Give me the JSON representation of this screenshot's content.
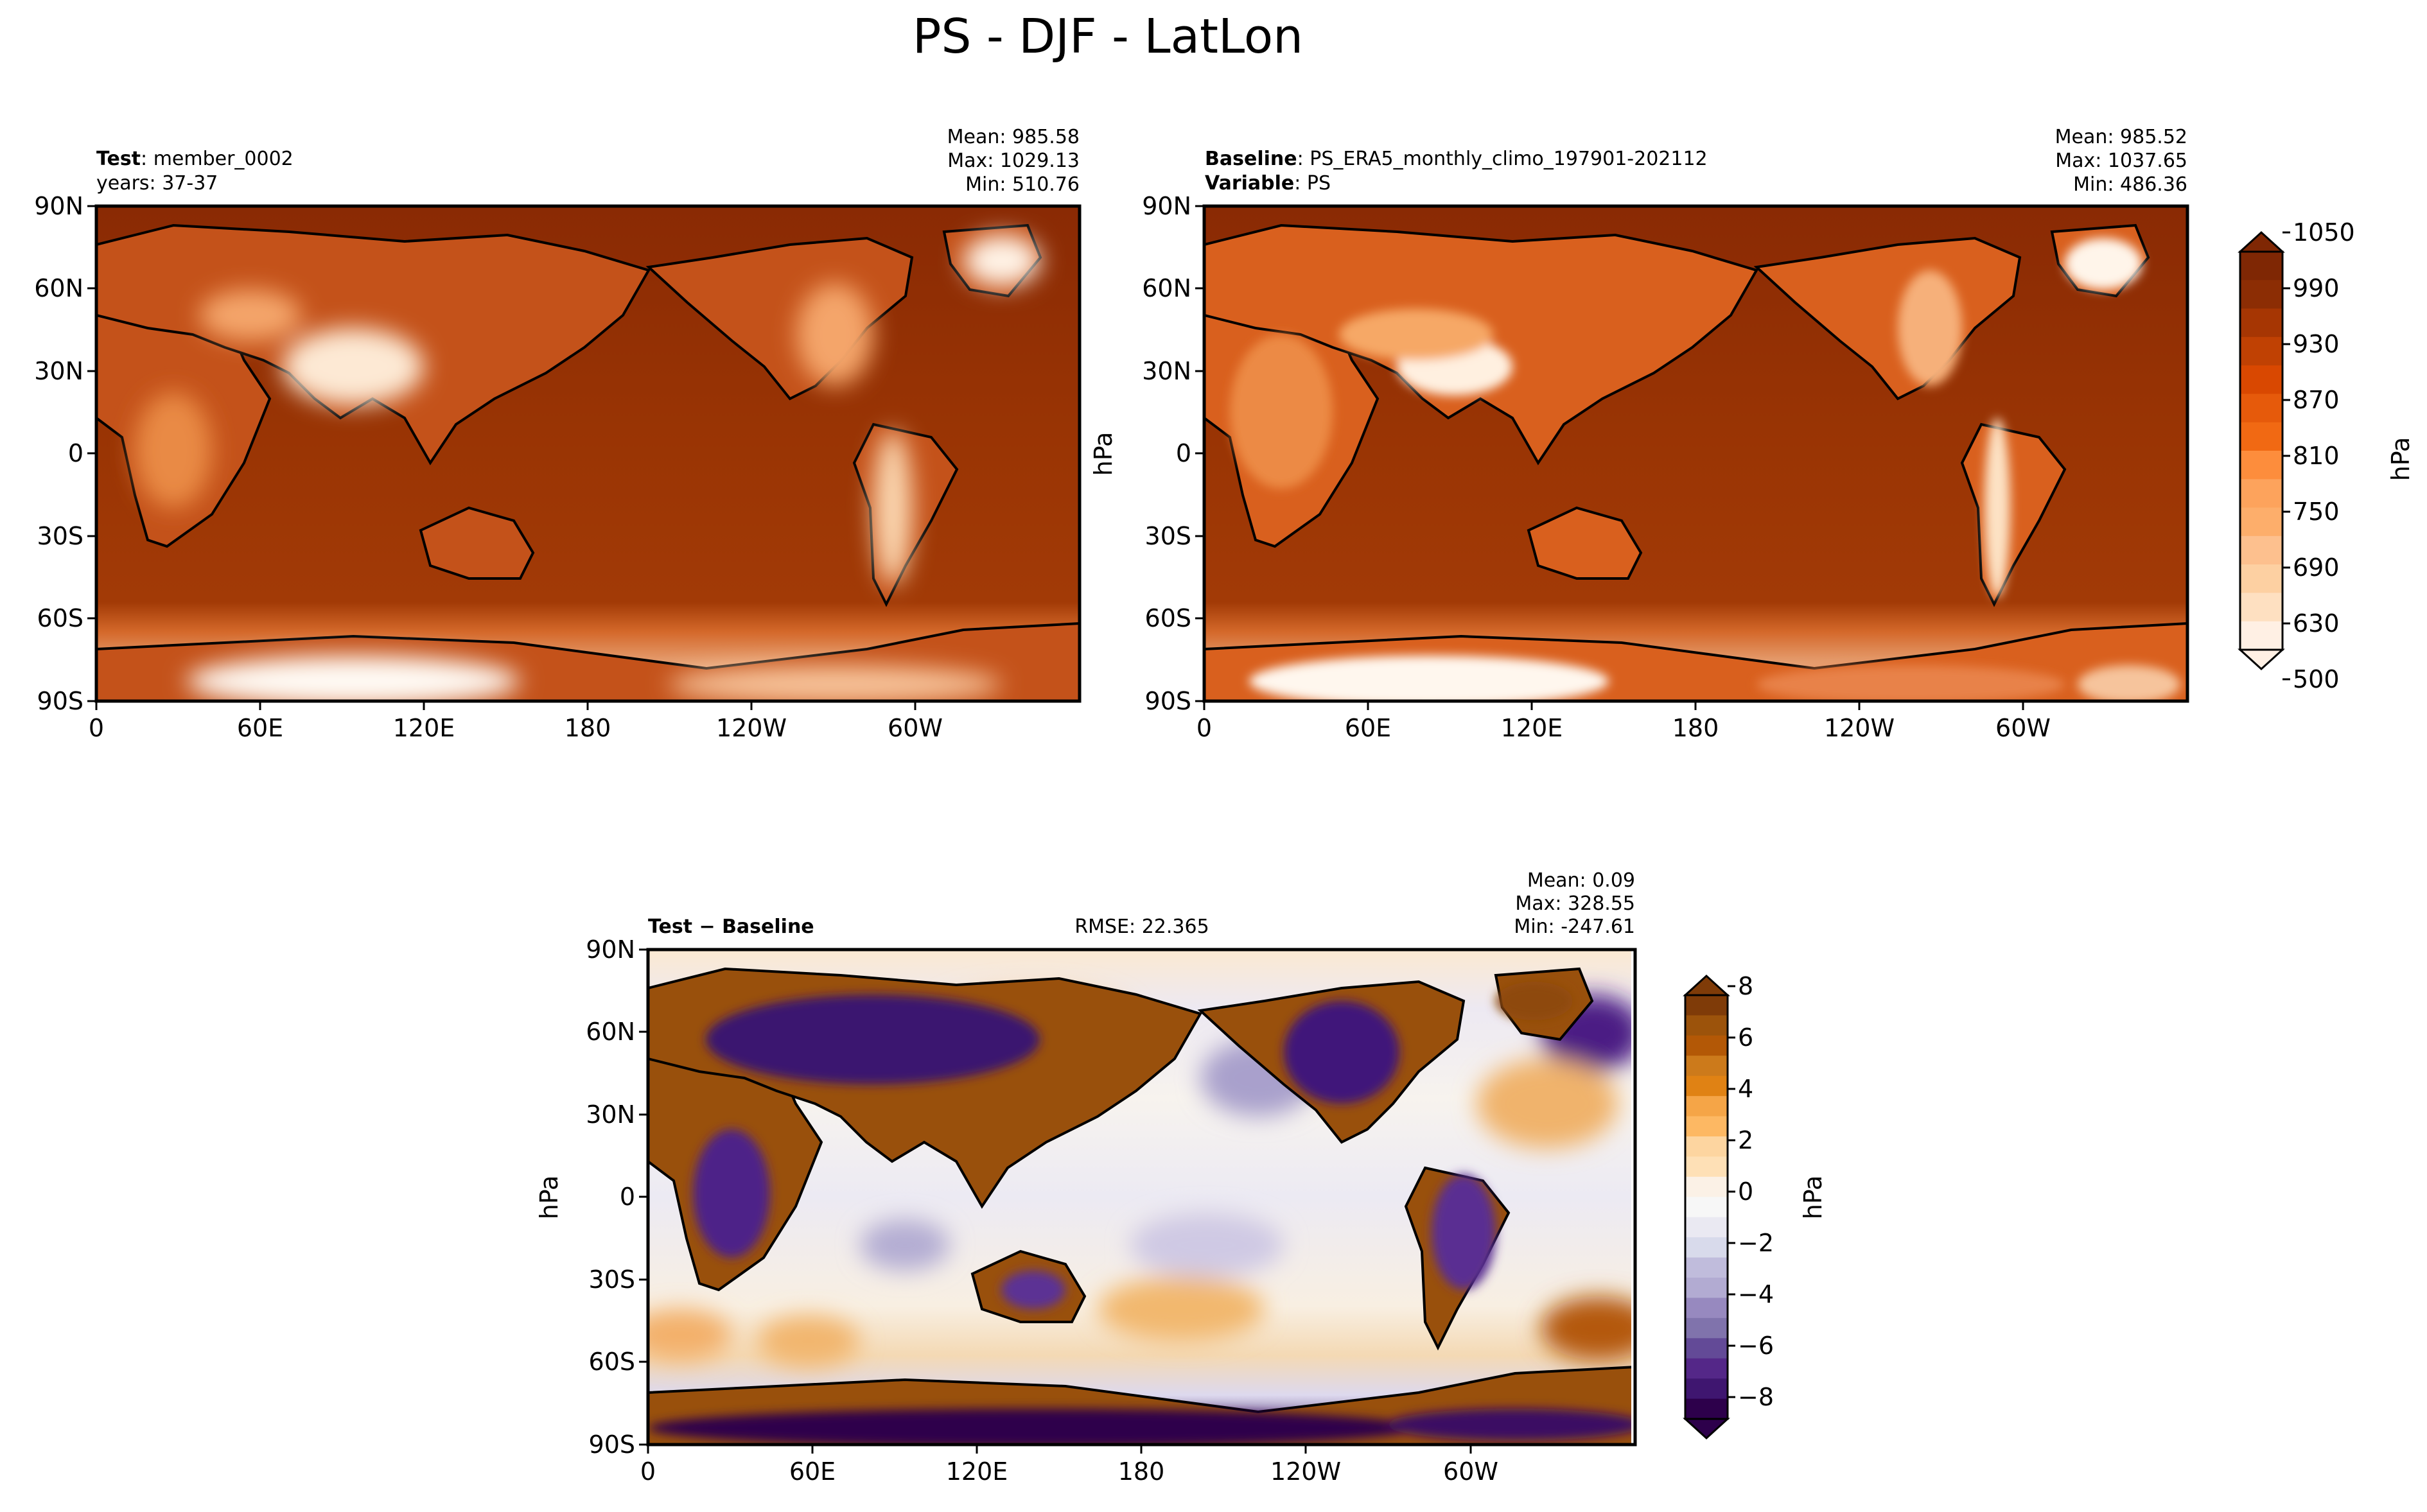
{
  "title": "PS - DJF - LatLon",
  "chart_data": [
    {
      "type": "heatmap",
      "panel": "test",
      "name_label": "Test",
      "name_value": "member_0002",
      "sub_text": "years: 37-37",
      "stats": [
        "Mean: 985.58",
        "Max: 1029.13",
        "Min: 510.76"
      ],
      "x_ticks": [
        "0",
        "60E",
        "120E",
        "180",
        "120W",
        "60W"
      ],
      "y_ticks": [
        "90N",
        "60N",
        "30N",
        "0",
        "30S",
        "60S",
        "90S"
      ],
      "xlim": [
        0,
        360
      ],
      "ylim": [
        -90,
        90
      ],
      "value_range": [
        510.76,
        1029.13
      ],
      "mean": 985.58
    },
    {
      "type": "heatmap",
      "panel": "baseline",
      "name_label": "Baseline",
      "name_value": "PS_ERA5_monthly_climo_197901-202112",
      "var_label": "Variable",
      "var_value": "PS",
      "stats": [
        "Mean: 985.52",
        "Max: 1037.65",
        "Min: 486.36"
      ],
      "x_ticks": [
        "0",
        "60E",
        "120E",
        "180",
        "120W",
        "60W"
      ],
      "y_ticks": [
        "90N",
        "60N",
        "30N",
        "0",
        "30S",
        "60S",
        "90S"
      ],
      "side_label": "hPa",
      "xlim": [
        0,
        360
      ],
      "ylim": [
        -90,
        90
      ],
      "value_range": [
        486.36,
        1037.65
      ],
      "mean": 985.52
    },
    {
      "type": "heatmap",
      "panel": "difference",
      "name_label": "Test",
      "minus": " − ",
      "name_value": "Baseline",
      "rmse": "RMSE: 22.365",
      "stats": [
        "Mean:  0.09",
        "Max: 328.55",
        "Min: -247.61"
      ],
      "x_ticks": [
        "0",
        "60E",
        "120E",
        "180",
        "120W",
        "60W"
      ],
      "y_ticks": [
        "90N",
        "60N",
        "30N",
        "0",
        "30S",
        "60S",
        "90S"
      ],
      "side_label": "hPa",
      "xlim": [
        0,
        360
      ],
      "ylim": [
        -90,
        90
      ],
      "value_range": [
        -247.61,
        328.55
      ],
      "mean": 0.09
    }
  ],
  "colorbars": {
    "main": {
      "label": "hPa",
      "ticks": [
        "1050",
        "990",
        "930",
        "870",
        "810",
        "750",
        "690",
        "630",
        "500"
      ],
      "colors": [
        "#7f2704",
        "#8c2d04",
        "#a63603",
        "#c04103",
        "#d94801",
        "#e65a0b",
        "#f16913",
        "#fd8d3c",
        "#fda35c",
        "#fdae6b",
        "#fdc08e",
        "#fdd0a2",
        "#fee0c1",
        "#fff0e4"
      ]
    },
    "diff": {
      "label": "hPa",
      "ticks": [
        "8",
        "6",
        "4",
        "2",
        "0",
        "−2",
        "−4",
        "−6",
        "−8"
      ],
      "colors": [
        "#7f3b08",
        "#9c530b",
        "#b35806",
        "#cc7a1b",
        "#e08214",
        "#f5a547",
        "#fdb863",
        "#fdd5a0",
        "#fee0b6",
        "#fbf1e6",
        "#f7f7f7",
        "#eae9f2",
        "#d8daeb",
        "#c0bcdc",
        "#b2abd2",
        "#9789bf",
        "#8073ac",
        "#634a97",
        "#542788",
        "#3f1670",
        "#2d004b"
      ]
    }
  },
  "colors": {
    "land_main": "#fdae6b",
    "ocean_main": "#993404",
    "coast": "#000000"
  }
}
